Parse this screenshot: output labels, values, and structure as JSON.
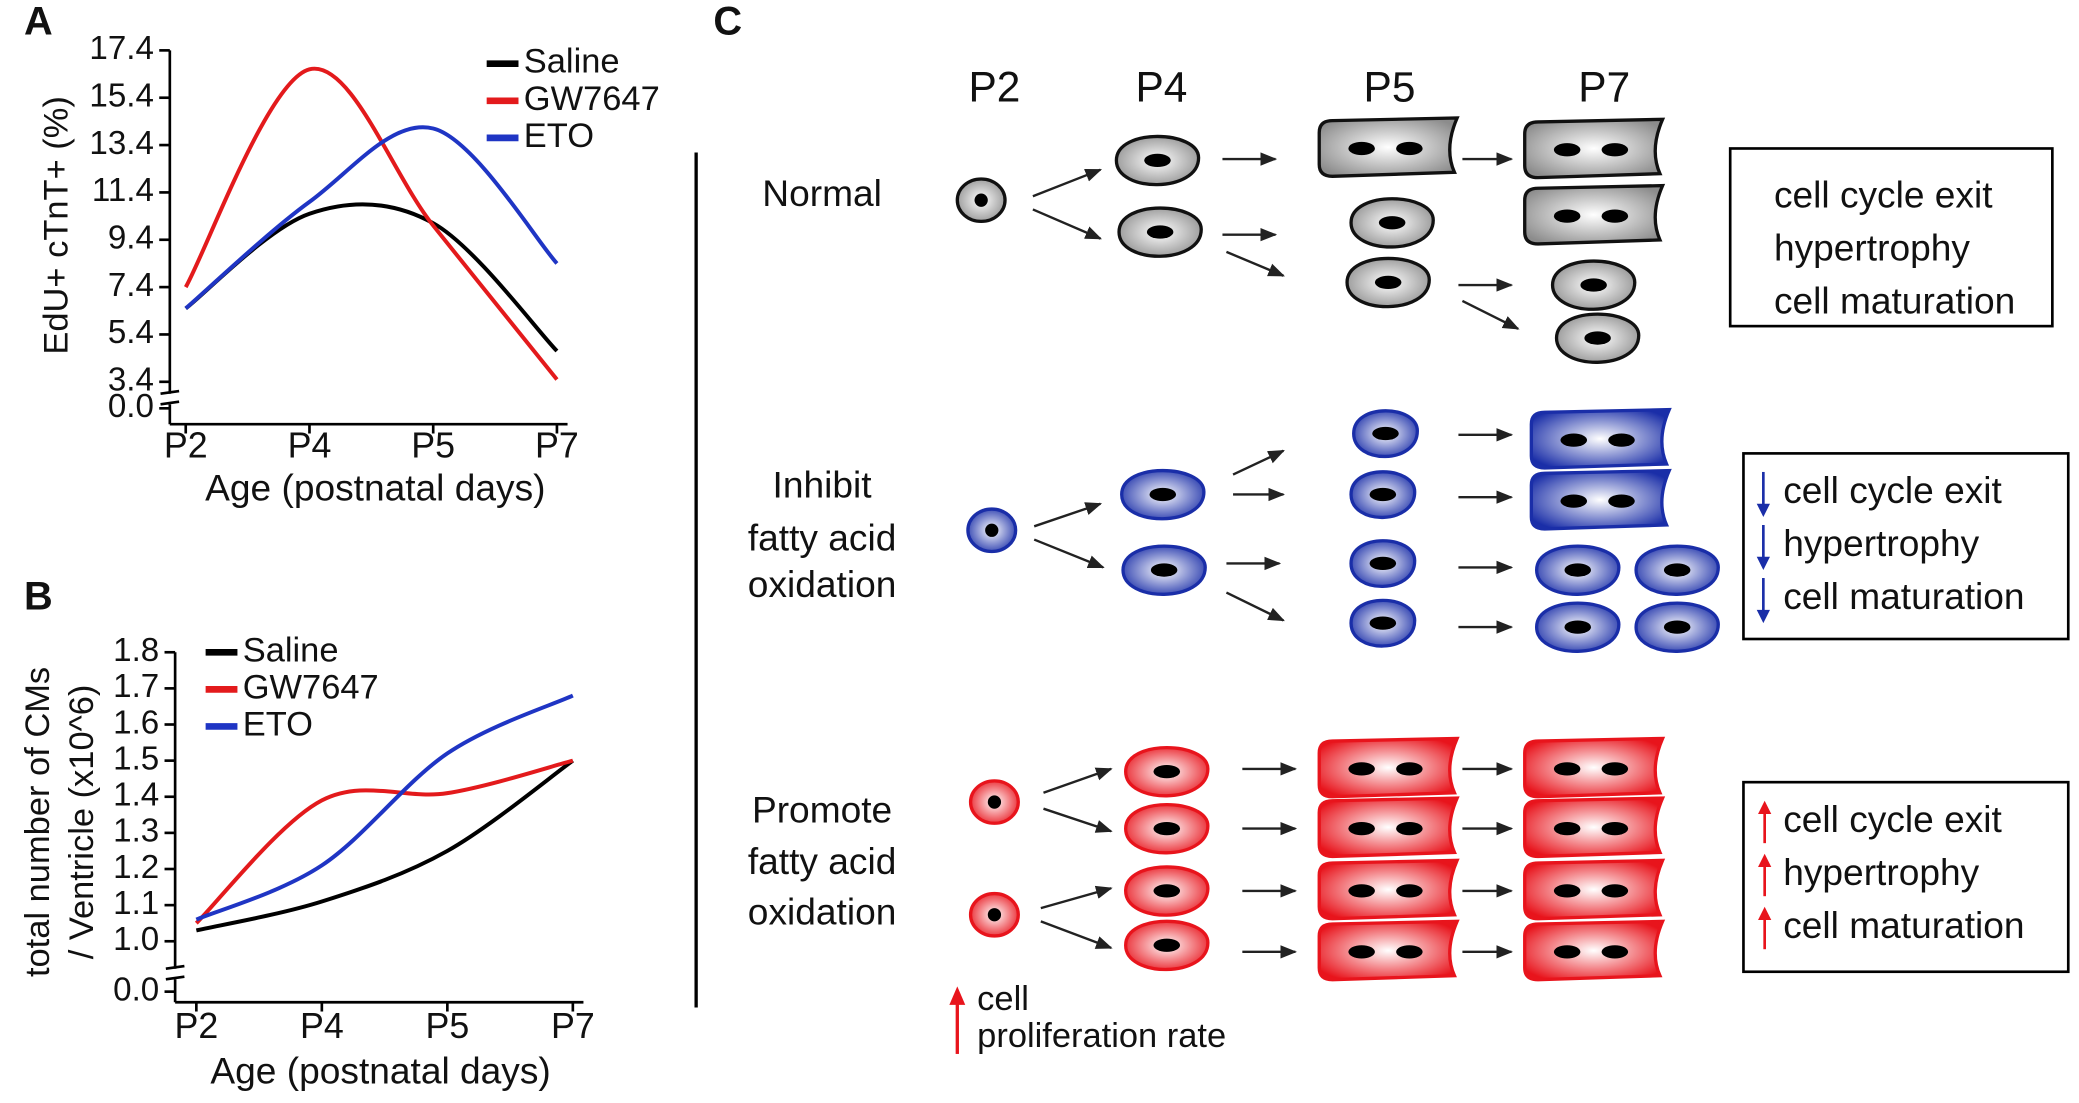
{
  "chart_data": [
    {
      "type": "line",
      "panel": "A",
      "x_label": "Age (postnatal days)",
      "y_label": "EdU+ cTnT+ (%)",
      "categories": [
        "P2",
        "P4",
        "P5",
        "P7"
      ],
      "series": [
        {
          "name": "Saline",
          "color": "#000000",
          "values": [
            6.5,
            10.5,
            10.1,
            4.7
          ]
        },
        {
          "name": "GW7647",
          "color": "#e31a1c",
          "values": [
            7.4,
            16.6,
            10.0,
            3.5
          ]
        },
        {
          "name": "ETO",
          "color": "#1f35c4",
          "values": [
            6.5,
            11.0,
            14.1,
            8.4
          ]
        }
      ],
      "ylim": [
        0,
        17.4
      ],
      "yticks": [
        {
          "value": 0,
          "label": "0.0"
        },
        3.4,
        5.4,
        7.4,
        9.4,
        11.4,
        13.4,
        15.4,
        17.4
      ],
      "axis_break": true,
      "grid": false,
      "legend": "upper right"
    },
    {
      "type": "line",
      "panel": "B",
      "x_label": "Age (postnatal days)",
      "y_label": [
        "total number of CMs",
        "/ Ventricle (x10^6)"
      ],
      "categories": [
        "P2",
        "P4",
        "P5",
        "P7"
      ],
      "series": [
        {
          "name": "Saline",
          "color": "#000000",
          "values": [
            1.03,
            1.11,
            1.25,
            1.5
          ]
        },
        {
          "name": "GW7647",
          "color": "#e31a1c",
          "values": [
            1.05,
            1.39,
            1.41,
            1.5
          ]
        },
        {
          "name": "ETO",
          "color": "#1f35c4",
          "values": [
            1.06,
            1.21,
            1.52,
            1.68
          ]
        }
      ],
      "ylim": [
        0,
        1.8
      ],
      "yticks": [
        {
          "value": 0,
          "label": "0.0"
        },
        {
          "value": 1,
          "label": "1.0"
        },
        1.1,
        1.2,
        1.3,
        1.4,
        1.5,
        1.6,
        1.7,
        1.8
      ],
      "axis_break": true,
      "grid": false,
      "legend": "upper left"
    }
  ],
  "diagram": {
    "panel": "C",
    "stages": [
      "P2",
      "P4",
      "P5",
      "P7"
    ],
    "rows": [
      {
        "label": [
          "Normal"
        ],
        "outcomes": [
          "cell cycle exit",
          "hypertrophy",
          "cell maturation"
        ]
      },
      {
        "label": [
          "Inhibit",
          "fatty acid",
          "oxidation"
        ],
        "outcomes": [
          "cell cycle exit",
          "hypertrophy",
          "cell maturation"
        ]
      },
      {
        "label": [
          "Promote",
          "fatty acid",
          "oxidation"
        ],
        "outcomes": [
          "cell cycle exit",
          "hypertrophy",
          "cell maturation"
        ]
      }
    ],
    "note": [
      "cell",
      "proliferation rate"
    ]
  }
}
